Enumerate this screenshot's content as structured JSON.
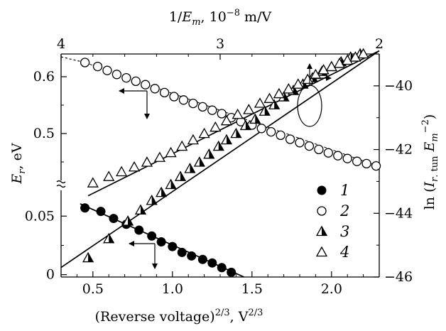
{
  "chart_data": {
    "type": "scatter",
    "x_axis": {
      "label": "(Reverse voltage)",
      "label_sup": "2/3",
      "label_unit": ", V",
      "label_unit_sup": "2/3",
      "range": [
        0.3,
        2.3
      ],
      "ticks": [
        0.5,
        1.0,
        1.5,
        2.0
      ],
      "tick_labels": [
        "0.5",
        "1.0",
        "1.5",
        "2.0"
      ]
    },
    "x2_axis": {
      "label_num": "1/",
      "label_var": "E",
      "label_sub": "m",
      "label_unit": ", 10",
      "label_exp": "−8",
      "label_unit2": " m/V",
      "ticks": [
        4,
        3,
        2
      ],
      "tick_labels": [
        "4",
        "3",
        "2"
      ]
    },
    "y_axis_left": {
      "label_var": "E",
      "label_sub": "r",
      "label_unit": ", eV",
      "upper_range": [
        0.42,
        0.64
      ],
      "upper_ticks": [
        0.5,
        0.6
      ],
      "upper_tick_labels": [
        "0.5",
        "0.6"
      ],
      "lower_range": [
        -0.002,
        0.072
      ],
      "lower_ticks": [
        0,
        0.05
      ],
      "lower_tick_labels": [
        "0",
        "0.05"
      ],
      "broken": true
    },
    "y_axis_right": {
      "label_pre": "ln (",
      "label_var": "I",
      "label_sub": "r",
      "label_sub2": ". tun",
      "label_var2": "E",
      "label_sub3": "m",
      "label_sup": "−2",
      "label_post": ")",
      "range": [
        -46.0,
        -39.0
      ],
      "ticks": [
        -40,
        -42,
        -44,
        -46
      ],
      "tick_labels": [
        "−40",
        "−42",
        "−44",
        "−46"
      ]
    },
    "series": [
      {
        "name": "1",
        "marker": "filled-circle",
        "axis": "left-lower",
        "x": [
          0.45,
          0.55,
          0.63,
          0.71,
          0.79,
          0.87,
          0.93,
          1.0,
          1.06,
          1.12,
          1.19,
          1.25,
          1.31,
          1.37
        ],
        "y": [
          0.057,
          0.054,
          0.048,
          0.043,
          0.038,
          0.033,
          0.028,
          0.024,
          0.019,
          0.016,
          0.013,
          0.01,
          0.006,
          0.002
        ],
        "fit": {
          "x": [
            0.42,
            1.45
          ],
          "y": [
            0.0605,
            -0.002
          ]
        }
      },
      {
        "name": "2",
        "marker": "open-circle",
        "axis": "left-upper",
        "x": [
          0.45,
          0.53,
          0.59,
          0.65,
          0.71,
          0.77,
          0.83,
          0.89,
          0.95,
          1.01,
          1.07,
          1.13,
          1.19,
          1.25,
          1.31,
          1.37,
          1.43,
          1.5,
          1.56,
          1.62,
          1.68,
          1.74,
          1.8,
          1.86,
          1.92,
          1.98,
          2.04,
          2.1,
          2.16,
          2.22,
          2.28
        ],
        "y": [
          0.625,
          0.618,
          0.611,
          0.604,
          0.598,
          0.592,
          0.586,
          0.579,
          0.572,
          0.565,
          0.559,
          0.553,
          0.547,
          0.541,
          0.535,
          0.528,
          0.521,
          0.515,
          0.509,
          0.503,
          0.497,
          0.49,
          0.484,
          0.478,
          0.472,
          0.466,
          0.461,
          0.456,
          0.451,
          0.447,
          0.443
        ],
        "fit": {
          "x": [
            0.3,
            2.3
          ],
          "y": [
            0.635,
            0.442
          ]
        }
      },
      {
        "name": "3",
        "marker": "half-filled-triangle",
        "axis": "right",
        "x": [
          0.47,
          0.6,
          0.72,
          0.8,
          0.87,
          0.93,
          0.99,
          1.05,
          1.11,
          1.17,
          1.23,
          1.29,
          1.34,
          1.4,
          1.46,
          1.52,
          1.58,
          1.64,
          1.7,
          1.76,
          1.82,
          1.88,
          1.94,
          2.0,
          2.06,
          2.12,
          2.18
        ],
        "y": [
          -45.4,
          -44.8,
          -44.25,
          -43.9,
          -43.6,
          -43.35,
          -43.1,
          -42.85,
          -42.6,
          -42.4,
          -42.15,
          -41.9,
          -41.7,
          -41.5,
          -41.25,
          -41.05,
          -40.8,
          -40.6,
          -40.35,
          -40.15,
          -39.95,
          -39.75,
          -39.55,
          -39.4,
          -39.25,
          -39.1,
          -39.0
        ],
        "fit": {
          "x": [
            0.3,
            2.3
          ],
          "y": [
            -45.7,
            -38.9
          ]
        }
      },
      {
        "name": "4",
        "marker": "open-triangle",
        "axis": "right",
        "x": [
          0.5,
          0.6,
          0.68,
          0.76,
          0.84,
          0.92,
          0.99,
          1.06,
          1.13,
          1.2,
          1.27,
          1.34,
          1.41,
          1.48,
          1.55,
          1.61,
          1.67,
          1.73,
          1.79,
          1.85,
          1.9,
          1.95,
          2.0,
          2.05,
          2.1,
          2.15,
          2.2
        ],
        "y": [
          -43.05,
          -42.85,
          -42.7,
          -42.55,
          -42.4,
          -42.25,
          -42.1,
          -41.9,
          -41.7,
          -41.5,
          -41.3,
          -41.1,
          -40.9,
          -40.75,
          -40.55,
          -40.4,
          -40.25,
          -40.1,
          -39.95,
          -39.8,
          -39.65,
          -39.5,
          -39.4,
          -39.3,
          -39.2,
          -39.1,
          -39.0
        ],
        "fit": {
          "x": [
            0.47,
            2.3
          ],
          "y": [
            -43.45,
            -38.9
          ]
        }
      }
    ],
    "legend": {
      "placement": "bottom-right",
      "items": [
        {
          "label": "1",
          "marker": "filled-circle"
        },
        {
          "label": "2",
          "marker": "open-circle"
        },
        {
          "label": "3",
          "marker": "half-filled-triangle"
        },
        {
          "label": "4",
          "marker": "open-triangle"
        }
      ]
    },
    "annotations": [
      {
        "type": "arrow",
        "series": "2",
        "points_to": "left axis"
      },
      {
        "type": "arrow",
        "series": "1",
        "points_to": "left axis"
      },
      {
        "type": "ellipse",
        "series": [
          "3",
          "4"
        ],
        "points_to": "right axis"
      }
    ],
    "grid": false
  }
}
